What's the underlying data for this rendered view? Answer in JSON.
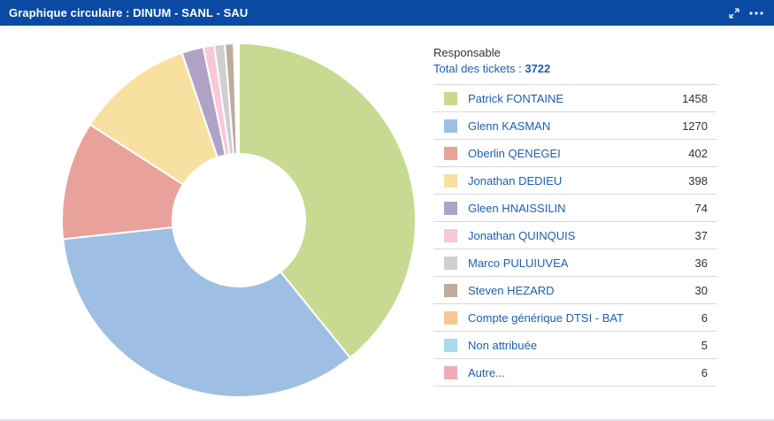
{
  "header": {
    "title": "Graphique circulaire : DINUM - SANL - SAU",
    "expand_icon": "expand-icon",
    "more_icon": "more-icon"
  },
  "legend": {
    "group_label": "Responsable",
    "total_label": "Total des tickets :",
    "total_value": "3722"
  },
  "chart_data": {
    "type": "pie",
    "donut": true,
    "categories": [
      "Patrick FONTAINE",
      "Glenn KASMAN",
      "Oberlin QENEGEI",
      "Jonathan DEDIEU",
      "Gleen HNAISSILIN",
      "Jonathan QUINQUIS",
      "Marco PULUIUVEA",
      "Steven HEZARD",
      "Compte générique DTSI - BAT",
      "Non attribuée",
      "Autre..."
    ],
    "values": [
      1458,
      1270,
      402,
      398,
      74,
      37,
      36,
      30,
      6,
      5,
      6
    ],
    "colors": [
      "#c8da91",
      "#9ebfe3",
      "#e8a29b",
      "#f8e0a1",
      "#b0a2c6",
      "#f9c7d9",
      "#cfcfcf",
      "#beab9e",
      "#f6c795",
      "#a9d8ef",
      "#f2aab7"
    ],
    "legend_placement": "right"
  }
}
